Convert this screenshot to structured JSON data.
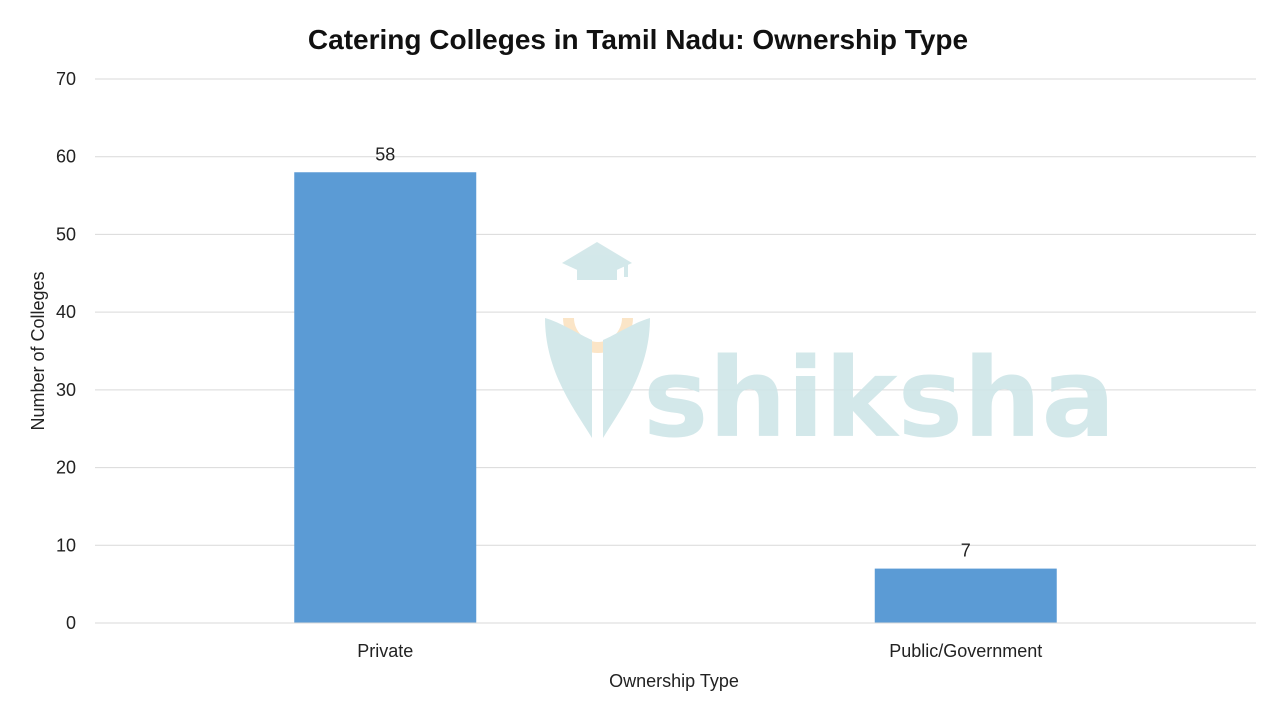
{
  "chart_data": {
    "type": "bar",
    "title": "Catering Colleges in Tamil Nadu: Ownership Type",
    "xlabel": "Ownership Type",
    "ylabel": "Number of Colleges",
    "categories": [
      "Private",
      "Public/Government"
    ],
    "values": [
      58,
      7
    ],
    "data_labels": [
      "58",
      "7"
    ],
    "ylim": [
      0,
      70
    ],
    "yticks": [
      0,
      10,
      20,
      30,
      40,
      50,
      60,
      70
    ],
    "grid": true,
    "legend": "none",
    "bar_color": "#5b9bd5",
    "gridline_color": "#d9d9d9"
  },
  "watermark": {
    "text": "shiksha",
    "color": "#cfe6e8",
    "accent_color": "#fbe3c2",
    "icon": "graduation-cap-logo-icon"
  }
}
